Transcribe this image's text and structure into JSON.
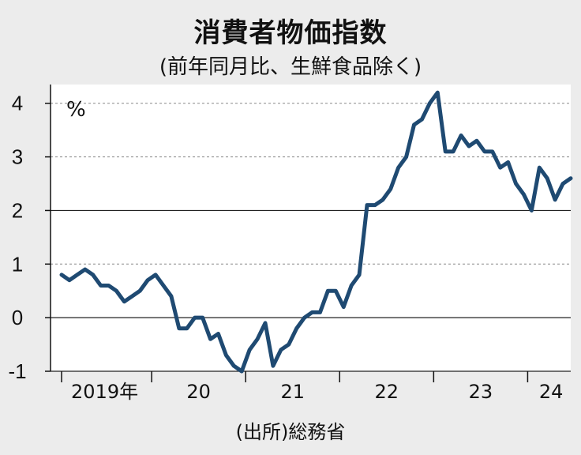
{
  "chart_data": {
    "type": "line",
    "title": "消費者物価指数",
    "subtitle": "(前年同月比、生鮮食品除く)",
    "source": "(出所)総務省",
    "unit": "%",
    "ylim": [
      -1,
      4.35
    ],
    "yticks": [
      4,
      3,
      2,
      1,
      0,
      -1
    ],
    "year_labels": [
      "2019年",
      "20",
      "21",
      "22",
      "23",
      "24"
    ],
    "series": [
      {
        "color": "#1f4a72",
        "x": [
          "2019-01",
          "2019-02",
          "2019-03",
          "2019-04",
          "2019-05",
          "2019-06",
          "2019-07",
          "2019-08",
          "2019-09",
          "2019-10",
          "2019-11",
          "2019-12",
          "2020-01",
          "2020-02",
          "2020-03",
          "2020-04",
          "2020-05",
          "2020-06",
          "2020-07",
          "2020-08",
          "2020-09",
          "2020-10",
          "2020-11",
          "2020-12",
          "2021-01",
          "2021-02",
          "2021-03",
          "2021-04",
          "2021-05",
          "2021-06",
          "2021-07",
          "2021-08",
          "2021-09",
          "2021-10",
          "2021-11",
          "2021-12",
          "2022-01",
          "2022-02",
          "2022-03",
          "2022-04",
          "2022-05",
          "2022-06",
          "2022-07",
          "2022-08",
          "2022-09",
          "2022-10",
          "2022-11",
          "2022-12",
          "2023-01",
          "2023-02",
          "2023-03",
          "2023-04",
          "2023-05",
          "2023-06",
          "2023-07",
          "2023-08",
          "2023-09",
          "2023-10",
          "2023-11",
          "2023-12",
          "2024-01",
          "2024-02",
          "2024-03",
          "2024-04",
          "2024-05",
          "2024-06"
        ],
        "values": [
          0.8,
          0.7,
          0.8,
          0.9,
          0.8,
          0.6,
          0.6,
          0.5,
          0.3,
          0.4,
          0.5,
          0.7,
          0.8,
          0.6,
          0.4,
          -0.2,
          -0.2,
          0.0,
          0.0,
          -0.4,
          -0.3,
          -0.7,
          -0.9,
          -1.0,
          -0.6,
          -0.4,
          -0.1,
          -0.9,
          -0.6,
          -0.5,
          -0.2,
          0.0,
          0.1,
          0.1,
          0.5,
          0.5,
          0.2,
          0.6,
          0.8,
          2.1,
          2.1,
          2.2,
          2.4,
          2.8,
          3.0,
          3.6,
          3.7,
          4.0,
          4.2,
          3.1,
          3.1,
          3.4,
          3.2,
          3.3,
          3.1,
          3.1,
          2.8,
          2.9,
          2.5,
          2.3,
          2.0,
          2.8,
          2.6,
          2.2,
          2.5,
          2.6
        ]
      }
    ]
  }
}
